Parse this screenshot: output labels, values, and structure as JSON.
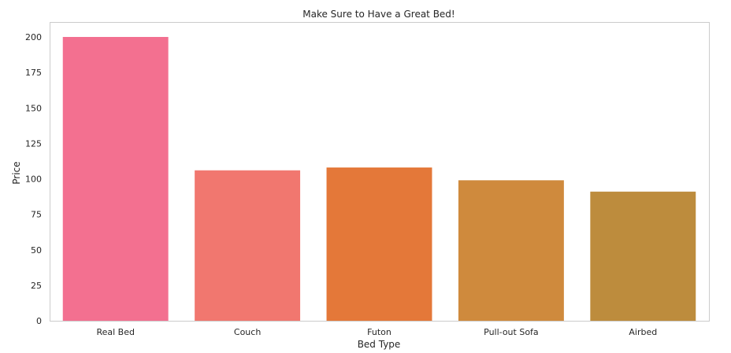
{
  "chart_data": {
    "type": "bar",
    "title": "Make Sure to Have a Great Bed!",
    "xlabel": "Bed Type",
    "ylabel": "Price",
    "categories": [
      "Real Bed",
      "Couch",
      "Futon",
      "Pull-out Sofa",
      "Airbed"
    ],
    "values": [
      200,
      106,
      108,
      99,
      91
    ],
    "ylim": [
      0,
      210
    ],
    "yticks": [
      0,
      25,
      50,
      75,
      100,
      125,
      150,
      175,
      200
    ],
    "grid": false,
    "colors": [
      "#f37090",
      "#f1776f",
      "#e47839",
      "#cf8a3d",
      "#bd8c3d"
    ],
    "frame_color": "#cccccc"
  }
}
